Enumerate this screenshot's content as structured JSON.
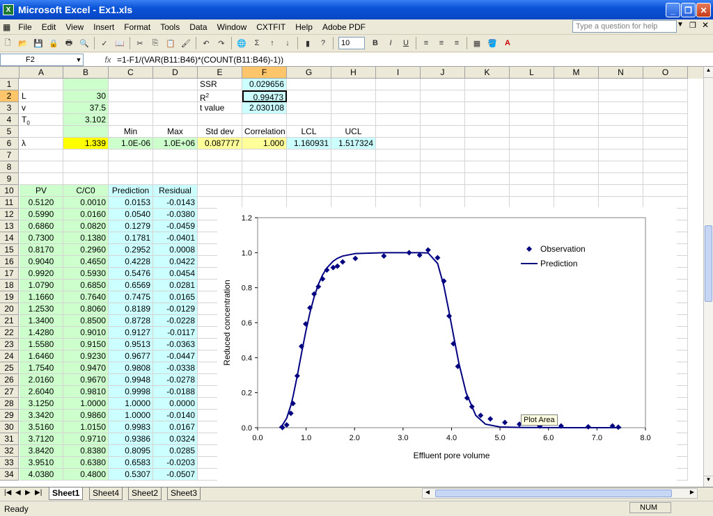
{
  "window": {
    "title": "Microsoft Excel - Ex1.xls",
    "icon": "excel-icon"
  },
  "menu": [
    "File",
    "Edit",
    "View",
    "Insert",
    "Format",
    "Tools",
    "Data",
    "Window",
    "CXTFIT",
    "Help",
    "Adobe PDF"
  ],
  "help_placeholder": "Type a question for help",
  "font_size": "10",
  "name_box": "F2",
  "formula": "=1-F1/(VAR(B11:B46)*(COUNT(B11:B46)-1))",
  "columns": [
    "A",
    "B",
    "C",
    "D",
    "E",
    "F",
    "G",
    "H",
    "I",
    "J",
    "K",
    "L",
    "M",
    "N",
    "O"
  ],
  "rows": [
    "1",
    "2",
    "3",
    "4",
    "5",
    "6",
    "7",
    "8",
    "9",
    "10",
    "11",
    "12",
    "13",
    "14",
    "15",
    "16",
    "17",
    "18",
    "19",
    "20",
    "21",
    "22",
    "23",
    "24",
    "25",
    "26",
    "27",
    "28",
    "29",
    "30",
    "31",
    "32",
    "33",
    "34"
  ],
  "params": {
    "L_label": "L",
    "L_value": "30",
    "v_label": "v",
    "v_value": "37.5",
    "T0_label": "T",
    "T0_sub": "0",
    "T0_value": "3.102",
    "lambda_label": "λ",
    "lambda_value": "1.339"
  },
  "stats": {
    "ssr_label": "SSR",
    "ssr_value": "0.029656",
    "r2_label": "R",
    "r2_sup": "2",
    "r2_value": "0.99473",
    "t_label": "t value",
    "t_value": "2.030108"
  },
  "bounds": {
    "headers": [
      "Min",
      "Max",
      "Std dev",
      "Correlation",
      "LCL",
      "UCL"
    ],
    "values": [
      "1.0E-06",
      "1.0E+06",
      "0.087777",
      "1.000",
      "1.160931",
      "1.517324"
    ]
  },
  "table": {
    "headers": [
      "PV",
      "C/C0",
      "Prediction",
      "Residual"
    ],
    "rows": [
      [
        "0.5120",
        "0.0010",
        "0.0153",
        "-0.0143"
      ],
      [
        "0.5990",
        "0.0160",
        "0.0540",
        "-0.0380"
      ],
      [
        "0.6860",
        "0.0820",
        "0.1279",
        "-0.0459"
      ],
      [
        "0.7300",
        "0.1380",
        "0.1781",
        "-0.0401"
      ],
      [
        "0.8170",
        "0.2960",
        "0.2952",
        "0.0008"
      ],
      [
        "0.9040",
        "0.4650",
        "0.4228",
        "0.0422"
      ],
      [
        "0.9920",
        "0.5930",
        "0.5476",
        "0.0454"
      ],
      [
        "1.0790",
        "0.6850",
        "0.6569",
        "0.0281"
      ],
      [
        "1.1660",
        "0.7640",
        "0.7475",
        "0.0165"
      ],
      [
        "1.2530",
        "0.8060",
        "0.8189",
        "-0.0129"
      ],
      [
        "1.3400",
        "0.8500",
        "0.8728",
        "-0.0228"
      ],
      [
        "1.4280",
        "0.9010",
        "0.9127",
        "-0.0117"
      ],
      [
        "1.5580",
        "0.9150",
        "0.9513",
        "-0.0363"
      ],
      [
        "1.6460",
        "0.9230",
        "0.9677",
        "-0.0447"
      ],
      [
        "1.7540",
        "0.9470",
        "0.9808",
        "-0.0338"
      ],
      [
        "2.0160",
        "0.9670",
        "0.9948",
        "-0.0278"
      ],
      [
        "2.6040",
        "0.9810",
        "0.9998",
        "-0.0188"
      ],
      [
        "3.1250",
        "1.0000",
        "1.0000",
        "0.0000"
      ],
      [
        "3.3420",
        "0.9860",
        "1.0000",
        "-0.0140"
      ],
      [
        "3.5160",
        "1.0150",
        "0.9983",
        "0.0167"
      ],
      [
        "3.7120",
        "0.9710",
        "0.9386",
        "0.0324"
      ],
      [
        "3.8420",
        "0.8380",
        "0.8095",
        "0.0285"
      ],
      [
        "3.9510",
        "0.6380",
        "0.6583",
        "-0.0203"
      ],
      [
        "4.0380",
        "0.4800",
        "0.5307",
        "-0.0507"
      ]
    ]
  },
  "sheets": [
    "Sheet1",
    "Sheet4",
    "Sheet2",
    "Sheet3"
  ],
  "active_sheet": "Sheet1",
  "status": {
    "ready": "Ready",
    "num": "NUM"
  },
  "chart_tooltip": "Plot Area",
  "chart_data": {
    "type": "scatter",
    "xlabel": "Effluent pore volume",
    "ylabel": "Reduced concentration",
    "xlim": [
      0,
      8
    ],
    "ylim": [
      0,
      1.2
    ],
    "xticks": [
      "0.0",
      "1.0",
      "2.0",
      "3.0",
      "4.0",
      "5.0",
      "6.0",
      "7.0",
      "8.0"
    ],
    "yticks": [
      "0.0",
      "0.2",
      "0.4",
      "0.6",
      "0.8",
      "1.0",
      "1.2"
    ],
    "legend": [
      "Observation",
      "Prediction"
    ],
    "legend_position": "top-right",
    "series": [
      {
        "name": "Observation",
        "style": "markers",
        "x": [
          0.512,
          0.599,
          0.686,
          0.73,
          0.817,
          0.904,
          0.992,
          1.079,
          1.166,
          1.253,
          1.34,
          1.428,
          1.558,
          1.646,
          1.754,
          2.016,
          2.604,
          3.125,
          3.342,
          3.516,
          3.712,
          3.842,
          3.951,
          4.038,
          4.13,
          4.32,
          4.42,
          4.6,
          4.8,
          5.1,
          5.4,
          5.82,
          6.26,
          6.82,
          7.32,
          7.44
        ],
        "y": [
          0.001,
          0.016,
          0.082,
          0.138,
          0.296,
          0.465,
          0.593,
          0.685,
          0.764,
          0.806,
          0.85,
          0.901,
          0.915,
          0.923,
          0.947,
          0.967,
          0.981,
          1.0,
          0.986,
          1.015,
          0.971,
          0.838,
          0.638,
          0.48,
          0.35,
          0.17,
          0.12,
          0.07,
          0.05,
          0.03,
          0.02,
          0.01,
          0.01,
          0.005,
          0.01,
          0.003
        ]
      },
      {
        "name": "Prediction",
        "style": "line",
        "x": [
          0.45,
          0.512,
          0.599,
          0.686,
          0.73,
          0.817,
          0.904,
          0.992,
          1.079,
          1.166,
          1.253,
          1.34,
          1.428,
          1.558,
          1.646,
          1.754,
          2.016,
          2.604,
          3.125,
          3.342,
          3.516,
          3.712,
          3.842,
          3.951,
          4.038,
          4.15,
          4.3,
          4.5,
          4.7,
          5.0,
          5.5,
          6.5,
          7.5
        ],
        "y": [
          0.0,
          0.0153,
          0.054,
          0.1279,
          0.1781,
          0.2952,
          0.4228,
          0.5476,
          0.6569,
          0.7475,
          0.8189,
          0.8728,
          0.9127,
          0.9513,
          0.9677,
          0.9808,
          0.9948,
          0.9998,
          1.0,
          1.0,
          0.9983,
          0.9386,
          0.8095,
          0.6583,
          0.5307,
          0.37,
          0.2,
          0.07,
          0.02,
          0.004,
          0.001,
          0.0,
          0.0
        ]
      }
    ]
  }
}
